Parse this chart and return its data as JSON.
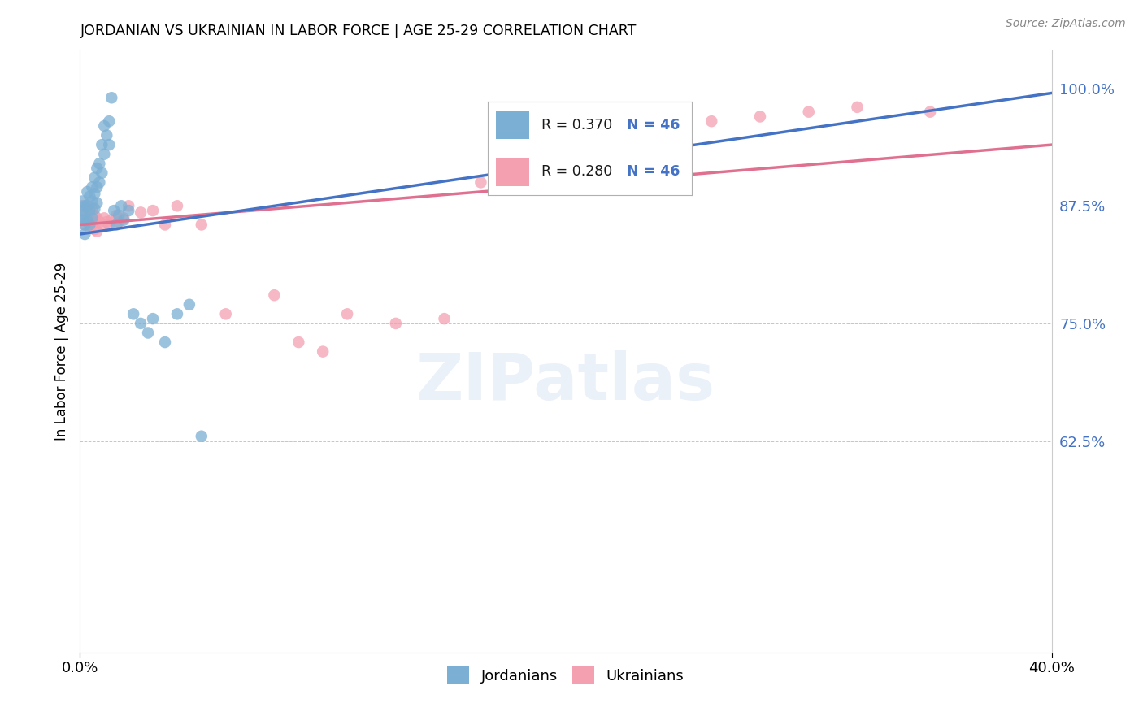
{
  "title": "JORDANIAN VS UKRAINIAN IN LABOR FORCE | AGE 25-29 CORRELATION CHART",
  "source": "Source: ZipAtlas.com",
  "ylabel": "In Labor Force | Age 25-29",
  "ytick_labels": [
    "62.5%",
    "75.0%",
    "87.5%",
    "100.0%"
  ],
  "ytick_values": [
    0.625,
    0.75,
    0.875,
    1.0
  ],
  "xlim": [
    0.0,
    0.4
  ],
  "ylim": [
    0.4,
    1.04
  ],
  "legend_R_jordan": "R = 0.370",
  "legend_N_jordan": "N = 46",
  "legend_R_ukraine": "R = 0.280",
  "legend_N_ukraine": "N = 46",
  "jordanian_color": "#7bafd4",
  "ukrainian_color": "#f4a0b0",
  "trend_jordan_color": "#4472c4",
  "trend_ukraine_color": "#e07090",
  "background_color": "#ffffff",
  "jordanian_x": [
    0.001,
    0.001,
    0.001,
    0.002,
    0.002,
    0.002,
    0.002,
    0.003,
    0.003,
    0.003,
    0.004,
    0.004,
    0.004,
    0.005,
    0.005,
    0.005,
    0.006,
    0.006,
    0.006,
    0.007,
    0.007,
    0.007,
    0.008,
    0.008,
    0.009,
    0.009,
    0.01,
    0.01,
    0.011,
    0.012,
    0.012,
    0.013,
    0.014,
    0.015,
    0.016,
    0.017,
    0.018,
    0.02,
    0.022,
    0.025,
    0.028,
    0.03,
    0.035,
    0.04,
    0.045,
    0.05
  ],
  "jordanian_y": [
    0.88,
    0.87,
    0.86,
    0.875,
    0.865,
    0.855,
    0.845,
    0.89,
    0.875,
    0.86,
    0.885,
    0.87,
    0.855,
    0.895,
    0.88,
    0.862,
    0.905,
    0.888,
    0.872,
    0.915,
    0.895,
    0.878,
    0.92,
    0.9,
    0.94,
    0.91,
    0.96,
    0.93,
    0.95,
    0.965,
    0.94,
    0.99,
    0.87,
    0.855,
    0.865,
    0.875,
    0.86,
    0.87,
    0.76,
    0.75,
    0.74,
    0.755,
    0.73,
    0.76,
    0.77,
    0.63
  ],
  "ukrainian_x": [
    0.001,
    0.001,
    0.002,
    0.002,
    0.003,
    0.003,
    0.004,
    0.004,
    0.005,
    0.005,
    0.006,
    0.006,
    0.007,
    0.007,
    0.008,
    0.009,
    0.01,
    0.011,
    0.012,
    0.013,
    0.015,
    0.016,
    0.018,
    0.02,
    0.025,
    0.03,
    0.035,
    0.04,
    0.05,
    0.06,
    0.08,
    0.09,
    0.1,
    0.11,
    0.13,
    0.15,
    0.165,
    0.18,
    0.2,
    0.22,
    0.24,
    0.26,
    0.28,
    0.3,
    0.32,
    0.35
  ],
  "ukrainian_y": [
    0.875,
    0.86,
    0.87,
    0.855,
    0.875,
    0.858,
    0.868,
    0.852,
    0.872,
    0.856,
    0.865,
    0.85,
    0.862,
    0.848,
    0.858,
    0.855,
    0.862,
    0.858,
    0.855,
    0.86,
    0.865,
    0.858,
    0.862,
    0.875,
    0.868,
    0.87,
    0.855,
    0.875,
    0.855,
    0.76,
    0.78,
    0.73,
    0.72,
    0.76,
    0.75,
    0.755,
    0.9,
    0.91,
    0.94,
    0.95,
    0.96,
    0.965,
    0.97,
    0.975,
    0.98,
    0.975
  ],
  "trend_jordan_x0": 0.0,
  "trend_jordan_y0": 0.845,
  "trend_jordan_x1": 0.4,
  "trend_jordan_y1": 0.995,
  "trend_ukraine_x0": 0.0,
  "trend_ukraine_y0": 0.855,
  "trend_ukraine_x1": 0.4,
  "trend_ukraine_y1": 0.94
}
